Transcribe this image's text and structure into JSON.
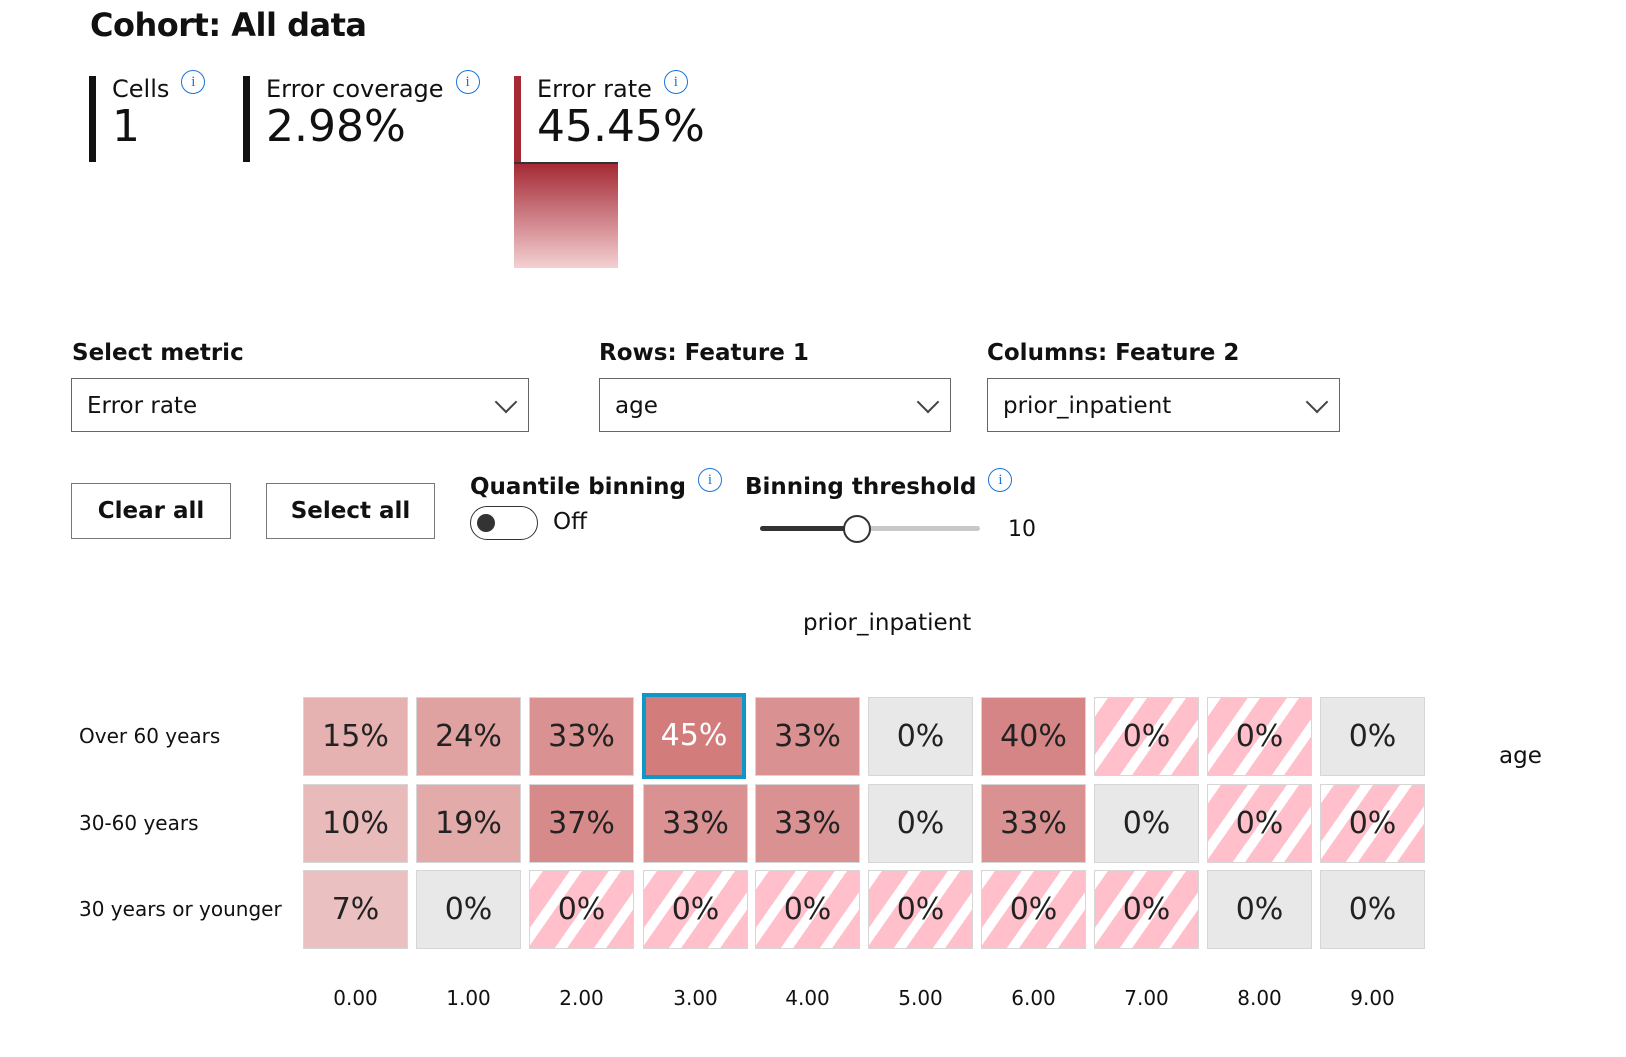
{
  "cohort_title": "Cohort: All data",
  "metrics": [
    {
      "label": "Cells",
      "value": "1"
    },
    {
      "label": "Error coverage",
      "value": "2.98%"
    },
    {
      "label": "Error rate",
      "value": "45.45%",
      "bar_fraction": 0.4545,
      "accent": "#a52a35"
    }
  ],
  "info_icon": "i",
  "select_metric": {
    "label": "Select metric",
    "value": "Error rate"
  },
  "rows_feature": {
    "label": "Rows: Feature 1",
    "value": "age"
  },
  "columns_feature": {
    "label": "Columns: Feature 2",
    "value": "prior_inpatient"
  },
  "buttons": {
    "clear_all": "Clear all",
    "select_all": "Select all"
  },
  "quantile_binning": {
    "label": "Quantile binning",
    "state": "Off"
  },
  "binning_threshold": {
    "label": "Binning threshold",
    "value": "10",
    "slider_fraction": 0.44
  },
  "heatmap": {
    "x_title": "prior_inpatient",
    "y_title": "age",
    "columns": [
      "0.00",
      "1.00",
      "2.00",
      "3.00",
      "4.00",
      "5.00",
      "6.00",
      "7.00",
      "8.00",
      "9.00"
    ],
    "rows": [
      {
        "label": "Over 60 years",
        "cells": [
          {
            "text": "15%",
            "v": 15
          },
          {
            "text": "24%",
            "v": 24
          },
          {
            "text": "33%",
            "v": 33
          },
          {
            "text": "45%",
            "v": 45,
            "selected": true
          },
          {
            "text": "33%",
            "v": 33
          },
          {
            "text": "0%",
            "v": 0
          },
          {
            "text": "40%",
            "v": 40
          },
          {
            "text": "0%",
            "v": 0,
            "hatched": true
          },
          {
            "text": "0%",
            "v": 0,
            "hatched": true
          },
          {
            "text": "0%",
            "v": 0
          }
        ]
      },
      {
        "label": "30-60 years",
        "cells": [
          {
            "text": "10%",
            "v": 10
          },
          {
            "text": "19%",
            "v": 19
          },
          {
            "text": "37%",
            "v": 37
          },
          {
            "text": "33%",
            "v": 33
          },
          {
            "text": "33%",
            "v": 33
          },
          {
            "text": "0%",
            "v": 0
          },
          {
            "text": "33%",
            "v": 33
          },
          {
            "text": "0%",
            "v": 0
          },
          {
            "text": "0%",
            "v": 0,
            "hatched": true
          },
          {
            "text": "0%",
            "v": 0,
            "hatched": true
          }
        ]
      },
      {
        "label": "30 years or younger",
        "cells": [
          {
            "text": "7%",
            "v": 7
          },
          {
            "text": "0%",
            "v": 0
          },
          {
            "text": "0%",
            "v": 0,
            "hatched": true
          },
          {
            "text": "0%",
            "v": 0,
            "hatched": true
          },
          {
            "text": "0%",
            "v": 0,
            "hatched": true
          },
          {
            "text": "0%",
            "v": 0,
            "hatched": true
          },
          {
            "text": "0%",
            "v": 0,
            "hatched": true
          },
          {
            "text": "0%",
            "v": 0,
            "hatched": true
          },
          {
            "text": "0%",
            "v": 0
          },
          {
            "text": "0%",
            "v": 0
          }
        ]
      }
    ],
    "colors": {
      "zero": "#e8e8e8",
      "low": "#f0cccc",
      "high": "#d27c7c",
      "selected_border": "#0f97c8",
      "hatch": "#ffc0cb"
    }
  }
}
